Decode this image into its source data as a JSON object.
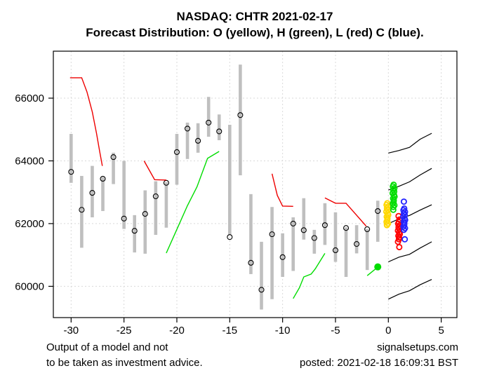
{
  "chart_data": {
    "type": "scatter",
    "title": "NASDAQ: CHTR 2021-02-17",
    "subtitle": "Forecast Distribution: O (yellow), H (green), L (red) C (blue).",
    "x_axis": {
      "ticks": [
        -30,
        -25,
        -20,
        -15,
        -10,
        -5,
        0,
        5
      ],
      "range": [
        -31.6,
        6.5
      ],
      "grid": true
    },
    "y_axis": {
      "ticks": [
        60000,
        62000,
        64000,
        66000
      ],
      "range": [
        59000,
        67500
      ],
      "grid": true
    },
    "colors": {
      "bar": "#BFBFBF",
      "close_marker": "#000000",
      "red_line": "#EE0000",
      "green_line": "#00DD00",
      "open_cluster": "#FFD700",
      "high_cluster": "#00DD00",
      "low_cluster": "#FF0000",
      "close_cluster": "#2222FF",
      "fan_line": "#000000",
      "grid": "#D9D9D9"
    },
    "bars": [
      {
        "x": -30,
        "low": 63300,
        "high": 64860,
        "close": 63650
      },
      {
        "x": -29,
        "low": 61230,
        "high": 63520,
        "close": 62440
      },
      {
        "x": -28,
        "low": 62200,
        "high": 63840,
        "close": 62980
      },
      {
        "x": -27,
        "low": 62400,
        "high": 63480,
        "close": 63430
      },
      {
        "x": -26,
        "low": 63260,
        "high": 64260,
        "close": 64120
      },
      {
        "x": -25,
        "low": 61830,
        "high": 64000,
        "close": 62160
      },
      {
        "x": -24,
        "low": 61080,
        "high": 62270,
        "close": 61770
      },
      {
        "x": -23,
        "low": 61040,
        "high": 63060,
        "close": 62310
      },
      {
        "x": -22,
        "low": 61640,
        "high": 63350,
        "close": 62870
      },
      {
        "x": -21,
        "low": 61870,
        "high": 63320,
        "close": 63300
      },
      {
        "x": -20,
        "low": 63240,
        "high": 64860,
        "close": 64280
      },
      {
        "x": -19,
        "low": 64060,
        "high": 65220,
        "close": 65030
      },
      {
        "x": -18,
        "low": 64260,
        "high": 65200,
        "close": 64640
      },
      {
        "x": -17,
        "low": 64770,
        "high": 66040,
        "close": 65220
      },
      {
        "x": -16,
        "low": 64660,
        "high": 65480,
        "close": 64940
      },
      {
        "x": -15,
        "low": 61650,
        "high": 65150,
        "close": 61570
      },
      {
        "x": -14,
        "low": 63540,
        "high": 67070,
        "close": 65460
      },
      {
        "x": -13,
        "low": 60390,
        "high": 62940,
        "close": 60750
      },
      {
        "x": -12,
        "low": 59260,
        "high": 61420,
        "close": 59890
      },
      {
        "x": -11,
        "low": 59590,
        "high": 62530,
        "close": 61660
      },
      {
        "x": -10,
        "low": 60300,
        "high": 61690,
        "close": 60930
      },
      {
        "x": -9,
        "low": 60490,
        "high": 62200,
        "close": 62000
      },
      {
        "x": -8,
        "low": 61490,
        "high": 62810,
        "close": 61790
      },
      {
        "x": -7,
        "low": 61040,
        "high": 61800,
        "close": 61540
      },
      {
        "x": -6,
        "low": 61320,
        "high": 62650,
        "close": 61950
      },
      {
        "x": -5,
        "low": 60780,
        "high": 62360,
        "close": 61150
      },
      {
        "x": -4,
        "low": 60300,
        "high": 61880,
        "close": 61860
      },
      {
        "x": -3,
        "low": 61050,
        "high": 61950,
        "close": 61350
      },
      {
        "x": -2,
        "low": 60520,
        "high": 61830,
        "close": 61820
      },
      {
        "x": -1,
        "low": 61420,
        "high": 62730,
        "close": 62400
      }
    ],
    "red_lines": [
      [
        [
          -30.1,
          66650
        ],
        [
          -29.0,
          66650
        ],
        [
          -28.5,
          66200
        ],
        [
          -28.0,
          65560
        ],
        [
          -27.6,
          64880
        ],
        [
          -27.3,
          64300
        ],
        [
          -27.05,
          63840
        ]
      ],
      [
        [
          -23.1,
          64000
        ],
        [
          -22.1,
          63400
        ],
        [
          -21.0,
          63390
        ]
      ],
      [
        [
          -11.0,
          63590
        ],
        [
          -10.5,
          62900
        ],
        [
          -10.0,
          62560
        ],
        [
          -9.0,
          62550
        ]
      ],
      [
        [
          -6.0,
          62820
        ],
        [
          -5.0,
          62650
        ],
        [
          -4.0,
          62650
        ],
        [
          -2.1,
          61920
        ]
      ]
    ],
    "green_lines": [
      [
        [
          -21.0,
          61060
        ],
        [
          -19.0,
          62570
        ],
        [
          -18.1,
          63170
        ],
        [
          -17.1,
          64080
        ],
        [
          -16.0,
          64300
        ]
      ],
      [
        [
          -9.0,
          59610
        ],
        [
          -8.4,
          59960
        ],
        [
          -8.0,
          60300
        ],
        [
          -7.3,
          60390
        ],
        [
          -6.9,
          60560
        ],
        [
          -6.0,
          61050
        ]
      ],
      [
        [
          -2.0,
          60340
        ],
        [
          -1.05,
          60600
        ]
      ]
    ],
    "green_dot": {
      "x": -1.0,
      "value": 60620
    },
    "clusters": [
      {
        "name": "O",
        "label": "Open forecasts",
        "color": "#FFD700",
        "x": -0.1,
        "dense_min": 61950,
        "dense_max": 62650,
        "outliers": [
          61960
        ]
      },
      {
        "name": "H",
        "label": "High forecasts",
        "color": "#00DD00",
        "x": 0.5,
        "dense_min": 62530,
        "dense_max": 63240,
        "outliers": [
          62440
        ]
      },
      {
        "name": "L",
        "label": "Low forecasts",
        "color": "#FF0000",
        "x": 1.0,
        "dense_min": 61500,
        "dense_max": 62050,
        "outliers": [
          62240,
          62130,
          61420,
          61250
        ]
      },
      {
        "name": "C",
        "label": "Close forecasts",
        "color": "#2222FF",
        "x": 1.5,
        "dense_min": 61800,
        "dense_max": 62480,
        "outliers": [
          62700,
          61500
        ]
      }
    ],
    "fan_lines": [
      [
        [
          0.0,
          64250
        ],
        [
          1.0,
          64330
        ],
        [
          2.0,
          64430
        ],
        [
          2.5,
          64560
        ],
        [
          3.0,
          64690
        ],
        [
          4.1,
          64880
        ]
      ],
      [
        [
          0.0,
          63070
        ],
        [
          1.0,
          63190
        ],
        [
          2.0,
          63330
        ],
        [
          3.0,
          63550
        ],
        [
          4.1,
          63760
        ]
      ],
      [
        [
          0.15,
          62020
        ],
        [
          1.0,
          62150
        ],
        [
          2.0,
          62260
        ],
        [
          3.0,
          62430
        ],
        [
          4.1,
          62600
        ]
      ],
      [
        [
          0.0,
          60780
        ],
        [
          1.0,
          60930
        ],
        [
          2.0,
          61020
        ],
        [
          3.0,
          61220
        ],
        [
          4.1,
          61420
        ]
      ],
      [
        [
          0.0,
          59590
        ],
        [
          1.0,
          59750
        ],
        [
          2.0,
          59860
        ],
        [
          3.0,
          60050
        ],
        [
          4.1,
          60220
        ]
      ]
    ],
    "footer": {
      "left_line1": "Output of a model and not",
      "left_line2": "to be taken as investment advice.",
      "right_line1": "signalsetups.com",
      "right_line2": "posted: 2021-02-18 16:09:31 BST"
    }
  }
}
